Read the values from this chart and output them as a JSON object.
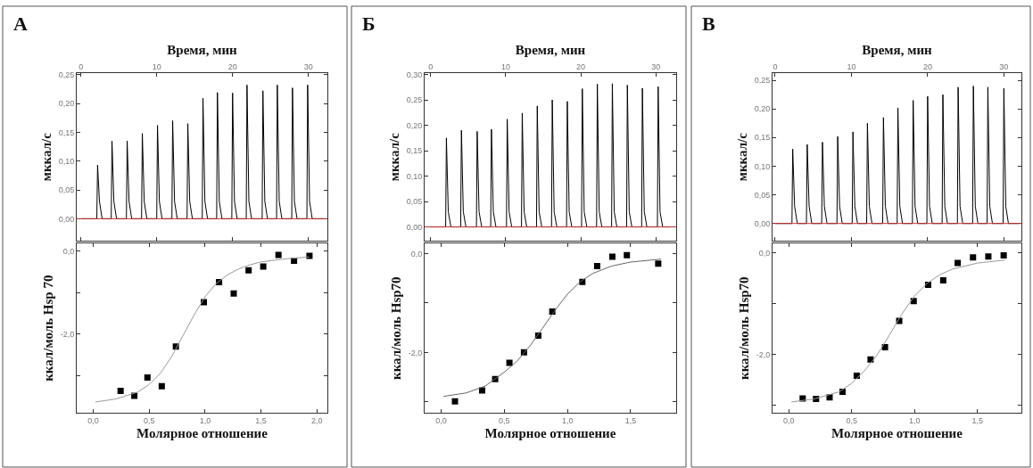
{
  "chart_data": [
    {
      "type": "line",
      "title": "А",
      "xlabel": "Время, мин",
      "ylabel": "мккал/с",
      "xlim": [
        -0.55,
        32.5
      ],
      "xticks": [
        0,
        10,
        20,
        30
      ],
      "ylim": [
        -0.038,
        0.252
      ],
      "yticks": [
        {
          "value": 0.0,
          "label": "0,00"
        },
        {
          "value": 0.05,
          "label": "0,05"
        },
        {
          "value": 0.1,
          "label": "0,10"
        },
        {
          "value": 0.15,
          "label": "0,15"
        },
        {
          "value": 0.2,
          "label": "0,20"
        },
        {
          "value": 0.25,
          "label": "0,25"
        }
      ],
      "series": [
        {
          "color": "#000000",
          "x": [
            0,
            2.1,
            2.2,
            2.45,
            2.8,
            4.0,
            4.1,
            4.35,
            4.7,
            6.0,
            6.1,
            6.35,
            6.7,
            8.0,
            8.1,
            8.35,
            8.7,
            10.0,
            10.1,
            10.35,
            10.7,
            12.0,
            12.1,
            12.35,
            12.7,
            14.0,
            14.1,
            14.35,
            14.7,
            16.0,
            16.1,
            16.35,
            16.7,
            17.9,
            18.0,
            18.25,
            18.6,
            19.9,
            20.0,
            20.25,
            20.6,
            21.8,
            21.9,
            22.15,
            22.5,
            23.9,
            24.0,
            24.25,
            24.6,
            25.8,
            25.9,
            26.15,
            26.5,
            27.8,
            27.9,
            28.15,
            28.5,
            29.8,
            29.9,
            30.15,
            30.5,
            32
          ],
          "values": [
            0,
            0,
            0.093,
            0.03,
            0,
            0,
            0.135,
            0.03,
            0,
            0,
            0.135,
            0.03,
            0,
            0,
            0.148,
            0.03,
            0,
            0,
            0.162,
            0.03,
            0,
            0,
            0.17,
            0.03,
            0,
            0,
            0.165,
            0.03,
            0,
            0,
            0.209,
            0.03,
            0,
            0,
            0.219,
            0.03,
            0,
            0,
            0.218,
            0.03,
            0,
            0,
            0.232,
            0.03,
            0,
            0,
            0.222,
            0.03,
            0,
            0,
            0.232,
            0.03,
            0,
            0,
            0.227,
            0.03,
            0,
            0,
            0.232,
            0.03,
            0,
            0
          ]
        }
      ],
      "ref_lines": [
        {
          "axis": "y",
          "value": 0,
          "color": "#cc3333"
        }
      ],
      "marker": "none",
      "line_style": "solid"
    },
    {
      "type": "scatter",
      "xlabel": "Молярное отношение",
      "ylabel": "ккал/моль Hsp 70",
      "xlim": [
        -0.147,
        2.093
      ],
      "xticks": [
        {
          "value": 0,
          "label": "0,0"
        },
        {
          "value": 0.5,
          "label": "0,5"
        },
        {
          "value": 1.0,
          "label": "1,0"
        },
        {
          "value": 1.5,
          "label": "1,5"
        },
        {
          "value": 2.0,
          "label": "2,0"
        }
      ],
      "ylim": [
        -3.91,
        0.19
      ],
      "yticks": [
        {
          "value": 0,
          "label": "0,0"
        },
        {
          "value": -1,
          "label": null
        },
        {
          "value": -2,
          "label": "-2,0"
        },
        {
          "value": -3,
          "label": null
        }
      ],
      "series": [
        {
          "type": "scatter",
          "color": "#000000",
          "marker": "square",
          "x": [
            0.245,
            0.368,
            0.485,
            0.613,
            0.739,
            0.989,
            1.125,
            1.256,
            1.389,
            1.52,
            1.656,
            1.795,
            1.933
          ],
          "values": [
            -3.37,
            -3.49,
            -3.05,
            -3.26,
            -2.3,
            -1.23,
            -0.75,
            -1.02,
            -0.46,
            -0.37,
            -0.09,
            -0.23,
            -0.11
          ]
        },
        {
          "type": "line",
          "color": "#999999",
          "marker": "none",
          "x": [
            0.02,
            0.2,
            0.4,
            0.5,
            0.6,
            0.7,
            0.8,
            0.9,
            1.0,
            1.1,
            1.2,
            1.3,
            1.4,
            1.5,
            1.7,
            1.93
          ],
          "values": [
            -3.64,
            -3.57,
            -3.4,
            -3.22,
            -2.95,
            -2.55,
            -2.05,
            -1.55,
            -1.1,
            -0.78,
            -0.57,
            -0.43,
            -0.33,
            -0.26,
            -0.19,
            -0.14
          ]
        }
      ],
      "line_style": "solid"
    },
    {
      "type": "line",
      "title": "Б",
      "xlabel": "Время, мин",
      "ylabel": "мккал/с",
      "xlim": [
        -0.8,
        32.7
      ],
      "xticks": [
        0,
        10,
        20,
        30
      ],
      "ylim": [
        -0.027,
        0.302
      ],
      "yticks": [
        {
          "value": 0.0,
          "label": "0,00"
        },
        {
          "value": 0.05,
          "label": "0,05"
        },
        {
          "value": 0.1,
          "label": "0,10"
        },
        {
          "value": 0.15,
          "label": "0,15"
        },
        {
          "value": 0.2,
          "label": "0,20"
        },
        {
          "value": 0.25,
          "label": "0,25"
        },
        {
          "value": 0.3,
          "label": "0,30"
        }
      ],
      "series": [
        {
          "color": "#000000",
          "x": [
            0,
            2.0,
            2.1,
            2.35,
            2.7,
            4.0,
            4.1,
            4.35,
            4.7,
            6.1,
            6.2,
            6.45,
            6.8,
            8.0,
            8.1,
            8.35,
            8.7,
            10.1,
            10.2,
            10.45,
            10.8,
            12.1,
            12.2,
            12.45,
            12.8,
            14.1,
            14.2,
            14.45,
            14.8,
            16.1,
            16.2,
            16.45,
            16.8,
            18.1,
            18.2,
            18.45,
            18.8,
            20.1,
            20.2,
            20.45,
            20.8,
            22.1,
            22.2,
            22.45,
            22.8,
            24.1,
            24.2,
            24.45,
            24.8,
            26.1,
            26.2,
            26.45,
            26.8,
            28.1,
            28.2,
            28.45,
            28.8,
            30.2,
            30.3,
            30.55,
            30.9,
            32
          ],
          "values": [
            0,
            0,
            0.175,
            0.03,
            0,
            0,
            0.19,
            0.03,
            0,
            0,
            0.188,
            0.03,
            0,
            0,
            0.192,
            0.03,
            0,
            0,
            0.212,
            0.03,
            0,
            0,
            0.224,
            0.03,
            0,
            0,
            0.238,
            0.03,
            0,
            0,
            0.25,
            0.03,
            0,
            0,
            0.247,
            0.03,
            0,
            0,
            0.272,
            0.03,
            0,
            0,
            0.281,
            0.03,
            0,
            0,
            0.282,
            0.03,
            0,
            0,
            0.279,
            0.03,
            0,
            0,
            0.273,
            0.03,
            0,
            0,
            0.276,
            0.03,
            0,
            0
          ]
        }
      ],
      "ref_lines": [
        {
          "axis": "y",
          "value": 0,
          "color": "#cc3333"
        }
      ],
      "marker": "none",
      "line_style": "solid"
    },
    {
      "type": "scatter",
      "xlabel": "Молярное отношение",
      "ylabel": "ккал/моль Hsp70",
      "xlim": [
        -0.13,
        1.86
      ],
      "xticks": [
        {
          "value": 0,
          "label": "0,0"
        },
        {
          "value": 0.5,
          "label": "0,5"
        },
        {
          "value": 1.0,
          "label": "1,0"
        },
        {
          "value": 1.5,
          "label": "1,5"
        }
      ],
      "ylim": [
        -3.23,
        0.21
      ],
      "yticks": [
        {
          "value": 0,
          "label": "0,0"
        },
        {
          "value": -1,
          "label": null
        },
        {
          "value": -2,
          "label": "-2,0"
        },
        {
          "value": -3,
          "label": null
        }
      ],
      "series": [
        {
          "type": "scatter",
          "color": "#000000",
          "marker": "square",
          "x": [
            0.11,
            0.325,
            0.428,
            0.541,
            0.656,
            0.769,
            0.88,
            1.118,
            1.235,
            1.355,
            1.47,
            1.718
          ],
          "values": [
            -2.99,
            -2.77,
            -2.54,
            -2.21,
            -2.0,
            -1.66,
            -1.17,
            -0.57,
            -0.25,
            -0.06,
            -0.03,
            -0.2
          ]
        },
        {
          "type": "line",
          "color": "#666666",
          "marker": "none",
          "x": [
            0.02,
            0.2,
            0.35,
            0.5,
            0.6,
            0.7,
            0.8,
            0.9,
            1.0,
            1.1,
            1.2,
            1.35,
            1.5,
            1.74
          ],
          "values": [
            -2.89,
            -2.82,
            -2.68,
            -2.4,
            -2.18,
            -1.88,
            -1.52,
            -1.15,
            -0.82,
            -0.57,
            -0.4,
            -0.25,
            -0.17,
            -0.11
          ]
        }
      ],
      "line_style": "solid"
    },
    {
      "type": "line",
      "title": "В",
      "xlabel": "Время, мин",
      "ylabel": "мккал/с",
      "xlim": [
        -0.35,
        32.3
      ],
      "xticks": [
        0,
        10,
        20,
        30
      ],
      "ylim": [
        -0.03,
        0.262
      ],
      "yticks": [
        {
          "value": 0.0,
          "label": "0,00"
        },
        {
          "value": 0.05,
          "label": "0,05"
        },
        {
          "value": 0.1,
          "label": "0,10"
        },
        {
          "value": 0.15,
          "label": "0,15"
        },
        {
          "value": 0.2,
          "label": "0,20"
        },
        {
          "value": 0.25,
          "label": "0,25"
        }
      ],
      "series": [
        {
          "color": "#000000",
          "x": [
            0,
            2.2,
            2.3,
            2.55,
            2.9,
            4.1,
            4.2,
            4.45,
            4.8,
            6.1,
            6.2,
            6.45,
            6.8,
            8.1,
            8.2,
            8.45,
            8.8,
            10.1,
            10.2,
            10.45,
            10.8,
            12.0,
            12.1,
            12.35,
            12.7,
            14.1,
            14.2,
            14.45,
            14.8,
            16.0,
            16.1,
            16.35,
            16.7,
            18.0,
            18.1,
            18.35,
            18.7,
            19.9,
            20.0,
            20.25,
            20.6,
            21.9,
            22.0,
            22.25,
            22.6,
            23.9,
            24.0,
            24.25,
            24.6,
            25.9,
            26.0,
            26.25,
            26.6,
            27.8,
            27.9,
            28.15,
            28.5,
            29.9,
            30.0,
            30.25,
            30.6,
            32
          ],
          "values": [
            0,
            0,
            0.13,
            0.03,
            0,
            0,
            0.138,
            0.03,
            0,
            0,
            0.142,
            0.03,
            0,
            0,
            0.152,
            0.03,
            0,
            0,
            0.16,
            0.03,
            0,
            0,
            0.175,
            0.03,
            0,
            0,
            0.185,
            0.03,
            0,
            0,
            0.202,
            0.03,
            0,
            0,
            0.215,
            0.03,
            0,
            0,
            0.222,
            0.03,
            0,
            0,
            0.225,
            0.03,
            0,
            0,
            0.238,
            0.03,
            0,
            0,
            0.24,
            0.03,
            0,
            0,
            0.238,
            0.03,
            0,
            0,
            0.236,
            0.03,
            0,
            0
          ]
        }
      ],
      "ref_lines": [
        {
          "axis": "y",
          "value": 0,
          "color": "#cc3333"
        }
      ],
      "marker": "none",
      "line_style": "solid"
    },
    {
      "type": "scatter",
      "xlabel": "Молярное отношение",
      "ylabel": "ккал/моль Hsp70",
      "xlim": [
        -0.13,
        1.85
      ],
      "xticks": [
        {
          "value": 0,
          "label": "0,0"
        },
        {
          "value": 0.5,
          "label": "0,5"
        },
        {
          "value": 1.0,
          "label": "1,0"
        },
        {
          "value": 1.5,
          "label": "1,5"
        }
      ],
      "ylim": [
        -3.16,
        0.19
      ],
      "yticks": [
        {
          "value": 0,
          "label": "0,0"
        },
        {
          "value": -1,
          "label": null
        },
        {
          "value": -2,
          "label": "-2,0"
        },
        {
          "value": -3,
          "label": null
        }
      ],
      "series": [
        {
          "type": "scatter",
          "color": "#000000",
          "marker": "square",
          "x": [
            0.11,
            0.216,
            0.324,
            0.427,
            0.54,
            0.65,
            0.765,
            0.878,
            0.993,
            1.108,
            1.228,
            1.343,
            1.465,
            1.587,
            1.709
          ],
          "values": [
            -2.87,
            -2.88,
            -2.85,
            -2.74,
            -2.42,
            -2.1,
            -1.86,
            -1.34,
            -0.95,
            -0.63,
            -0.54,
            -0.2,
            -0.09,
            -0.07,
            -0.05
          ]
        },
        {
          "type": "line",
          "color": "#999999",
          "marker": "none",
          "x": [
            0.02,
            0.2,
            0.4,
            0.5,
            0.6,
            0.7,
            0.8,
            0.9,
            1.0,
            1.1,
            1.2,
            1.3,
            1.5,
            1.72
          ],
          "values": [
            -2.94,
            -2.88,
            -2.74,
            -2.57,
            -2.33,
            -2.02,
            -1.62,
            -1.2,
            -0.85,
            -0.6,
            -0.43,
            -0.32,
            -0.2,
            -0.14
          ]
        }
      ],
      "line_style": "solid"
    }
  ]
}
